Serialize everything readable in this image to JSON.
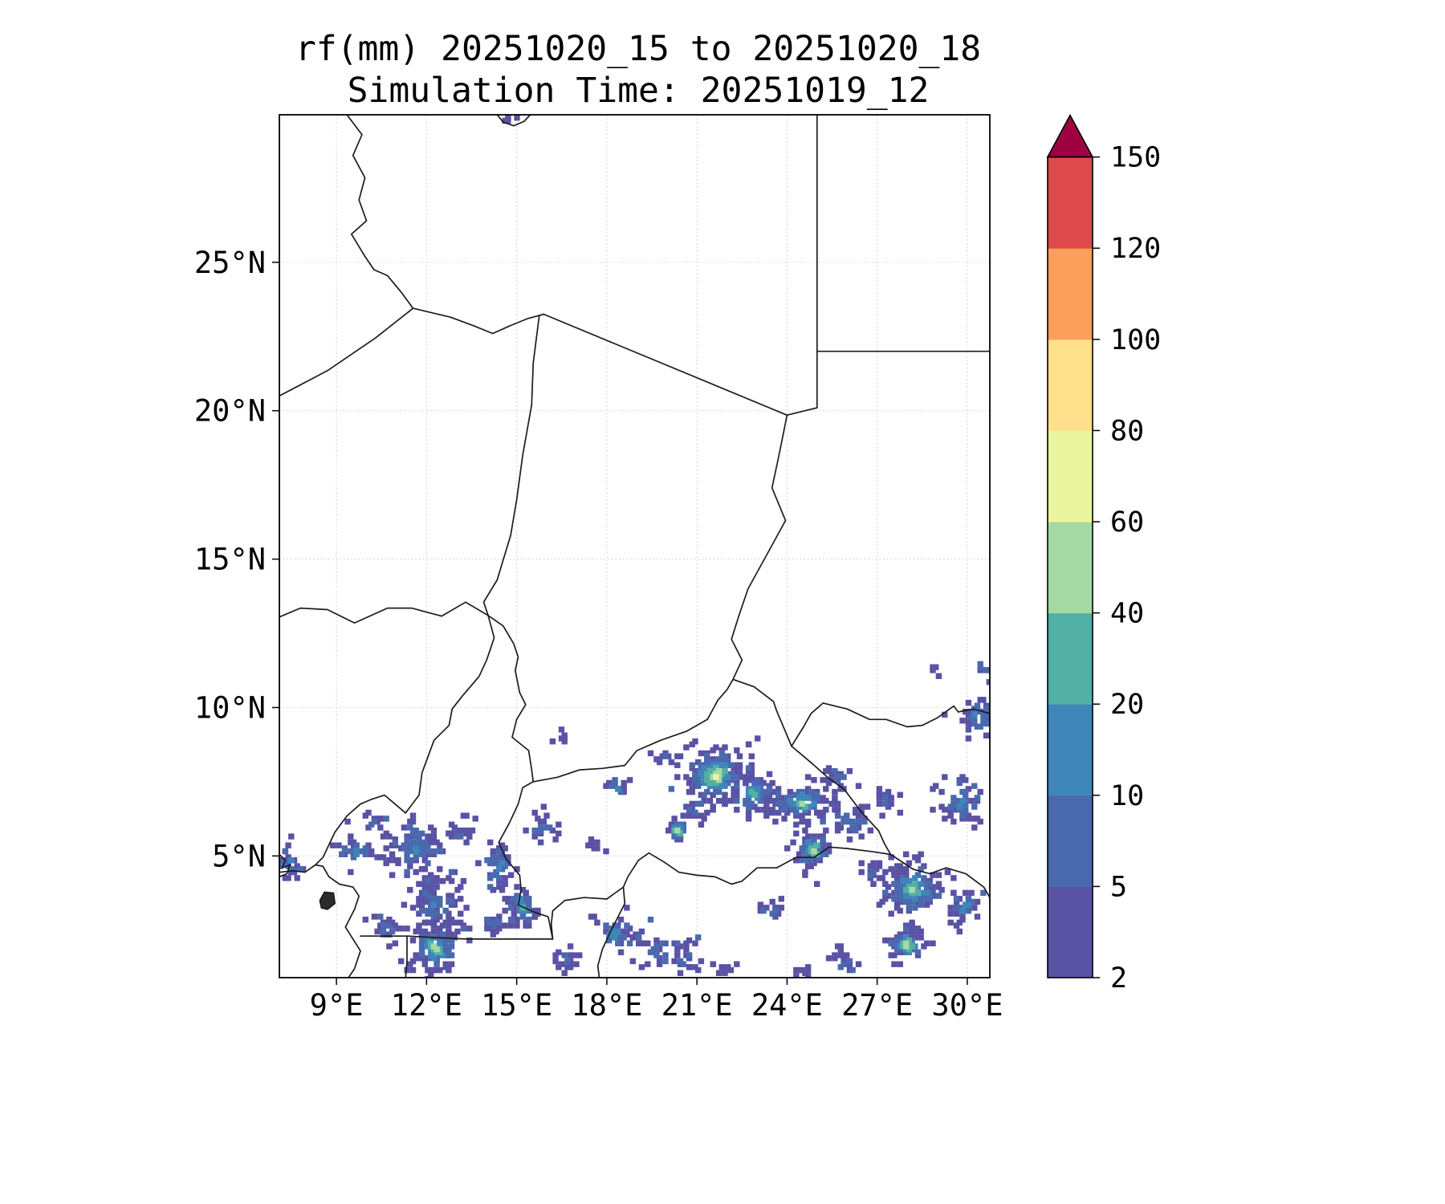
{
  "title": {
    "line1": "rf(mm) 20251020_15 to 20251020_18",
    "line2": "Simulation Time: 20251019_12"
  },
  "chart_data": {
    "type": "heatmap",
    "title": "rf(mm) 20251020_15 to 20251020_18",
    "subtitle": "Simulation Time: 20251019_12",
    "variable": "rf",
    "units": "mm",
    "grid": true,
    "x_axis": {
      "range": [
        7.1,
        30.75
      ],
      "ticks": [
        9,
        12,
        15,
        18,
        21,
        24,
        27,
        30
      ],
      "tick_labels": [
        "9°E",
        "12°E",
        "15°E",
        "18°E",
        "21°E",
        "24°E",
        "27°E",
        "30°E"
      ]
    },
    "y_axis": {
      "range": [
        0.9,
        29.97
      ],
      "ticks": [
        5,
        10,
        15,
        20,
        25
      ],
      "tick_labels": [
        "5°N",
        "10°N",
        "15°N",
        "20°N",
        "25°N"
      ]
    },
    "colorbar": {
      "levels": [
        2,
        5,
        10,
        20,
        40,
        60,
        80,
        100,
        120,
        150
      ],
      "tick_labels": [
        "2",
        "5",
        "10",
        "20",
        "40",
        "60",
        "80",
        "100",
        "120",
        "150"
      ],
      "colors": [
        "#5a52a5",
        "#4a69ae",
        "#3e86ba",
        "#52b0a4",
        "#a5d9a4",
        "#eaf69f",
        "#fedf8c",
        "#fba05c",
        "#dd4a4c"
      ],
      "over_color": "#9e0142",
      "extend": "max"
    },
    "rain_clusters": [
      {
        "lon": 11.6,
        "lat": 5.2,
        "rx": 0.85,
        "ry": 0.95,
        "n": 95,
        "peak": 2
      },
      {
        "lon": 12.35,
        "lat": 3.4,
        "rx": 0.7,
        "ry": 0.95,
        "n": 85,
        "peak": 2
      },
      {
        "lon": 12.3,
        "lat": 1.9,
        "rx": 0.8,
        "ry": 0.85,
        "n": 110,
        "peak": 4
      },
      {
        "lon": 10.6,
        "lat": 2.6,
        "rx": 0.5,
        "ry": 0.5,
        "n": 24,
        "peak": 1
      },
      {
        "lon": 9.6,
        "lat": 5.1,
        "rx": 0.7,
        "ry": 0.4,
        "n": 26,
        "peak": 2
      },
      {
        "lon": 7.5,
        "lat": 4.8,
        "rx": 0.45,
        "ry": 0.6,
        "n": 24,
        "peak": 2
      },
      {
        "lon": 10.2,
        "lat": 6.2,
        "rx": 0.4,
        "ry": 0.3,
        "n": 12,
        "peak": 1
      },
      {
        "lon": 13.1,
        "lat": 5.9,
        "rx": 0.4,
        "ry": 0.5,
        "n": 20,
        "peak": 1
      },
      {
        "lon": 14.4,
        "lat": 4.6,
        "rx": 0.5,
        "ry": 0.85,
        "n": 60,
        "peak": 2
      },
      {
        "lon": 15.2,
        "lat": 3.3,
        "rx": 0.5,
        "ry": 0.65,
        "n": 48,
        "peak": 3
      },
      {
        "lon": 14.2,
        "lat": 2.7,
        "rx": 0.4,
        "ry": 0.4,
        "n": 20,
        "peak": 1
      },
      {
        "lon": 15.9,
        "lat": 5.9,
        "rx": 0.45,
        "ry": 0.45,
        "n": 22,
        "peak": 2
      },
      {
        "lon": 16.6,
        "lat": 1.5,
        "rx": 0.4,
        "ry": 0.5,
        "n": 18,
        "peak": 1
      },
      {
        "lon": 18.3,
        "lat": 2.4,
        "rx": 0.7,
        "ry": 0.7,
        "n": 40,
        "peak": 2
      },
      {
        "lon": 19.6,
        "lat": 1.8,
        "rx": 0.5,
        "ry": 0.5,
        "n": 24,
        "peak": 1
      },
      {
        "lon": 18.3,
        "lat": 7.3,
        "rx": 0.35,
        "ry": 0.3,
        "n": 14,
        "peak": 2
      },
      {
        "lon": 17.6,
        "lat": 5.3,
        "rx": 0.3,
        "ry": 0.3,
        "n": 8,
        "peak": 0
      },
      {
        "lon": 20.6,
        "lat": 1.6,
        "rx": 0.5,
        "ry": 0.5,
        "n": 22,
        "peak": 1
      },
      {
        "lon": 16.5,
        "lat": 9.0,
        "rx": 0.25,
        "ry": 0.2,
        "n": 6,
        "peak": 0
      },
      {
        "lon": 21.6,
        "lat": 7.7,
        "rx": 1.05,
        "ry": 0.9,
        "n": 150,
        "peak": 5
      },
      {
        "lon": 22.9,
        "lat": 7.1,
        "rx": 0.8,
        "ry": 0.7,
        "n": 75,
        "peak": 3
      },
      {
        "lon": 20.35,
        "lat": 5.9,
        "rx": 0.35,
        "ry": 0.4,
        "n": 22,
        "peak": 4
      },
      {
        "lon": 21.0,
        "lat": 6.6,
        "rx": 0.4,
        "ry": 0.4,
        "n": 18,
        "peak": 1
      },
      {
        "lon": 19.9,
        "lat": 8.3,
        "rx": 0.3,
        "ry": 0.25,
        "n": 8,
        "peak": 1
      },
      {
        "lon": 24.5,
        "lat": 6.8,
        "rx": 0.95,
        "ry": 0.6,
        "n": 90,
        "peak": 4
      },
      {
        "lon": 24.85,
        "lat": 5.2,
        "rx": 0.55,
        "ry": 0.6,
        "n": 60,
        "peak": 4
      },
      {
        "lon": 26.1,
        "lat": 6.1,
        "rx": 0.7,
        "ry": 0.5,
        "n": 35,
        "peak": 2
      },
      {
        "lon": 25.7,
        "lat": 7.6,
        "rx": 0.45,
        "ry": 0.4,
        "n": 20,
        "peak": 1
      },
      {
        "lon": 25.9,
        "lat": 1.5,
        "rx": 0.5,
        "ry": 0.5,
        "n": 20,
        "peak": 1
      },
      {
        "lon": 23.5,
        "lat": 3.1,
        "rx": 0.45,
        "ry": 0.4,
        "n": 16,
        "peak": 1
      },
      {
        "lon": 28.2,
        "lat": 3.9,
        "rx": 1.0,
        "ry": 0.85,
        "n": 120,
        "peak": 4
      },
      {
        "lon": 28.0,
        "lat": 2.0,
        "rx": 0.6,
        "ry": 0.6,
        "n": 58,
        "peak": 4
      },
      {
        "lon": 29.8,
        "lat": 6.8,
        "rx": 0.7,
        "ry": 0.85,
        "n": 48,
        "peak": 2
      },
      {
        "lon": 30.4,
        "lat": 9.7,
        "rx": 0.5,
        "ry": 0.65,
        "n": 38,
        "peak": 2
      },
      {
        "lon": 30.55,
        "lat": 11.3,
        "rx": 0.3,
        "ry": 0.3,
        "n": 10,
        "peak": 1
      },
      {
        "lon": 28.9,
        "lat": 11.3,
        "rx": 0.15,
        "ry": 0.15,
        "n": 4,
        "peak": 0
      },
      {
        "lon": 27.3,
        "lat": 6.9,
        "rx": 0.4,
        "ry": 0.35,
        "n": 18,
        "peak": 1
      },
      {
        "lon": 26.8,
        "lat": 4.4,
        "rx": 0.4,
        "ry": 0.35,
        "n": 16,
        "peak": 1
      },
      {
        "lon": 29.9,
        "lat": 3.3,
        "rx": 0.55,
        "ry": 0.6,
        "n": 32,
        "peak": 2
      },
      {
        "lon": 21.9,
        "lat": 1.2,
        "rx": 0.4,
        "ry": 0.3,
        "n": 10,
        "peak": 0
      },
      {
        "lon": 24.5,
        "lat": 1.1,
        "rx": 0.3,
        "ry": 0.25,
        "n": 8,
        "peak": 0
      },
      {
        "lon": 14.8,
        "lat": 29.8,
        "rx": 0.22,
        "ry": 0.12,
        "n": 4,
        "peak": 1
      }
    ],
    "borders": [
      [
        [
          9.35,
          29.97
        ],
        [
          9.85,
          29.3
        ],
        [
          9.55,
          28.6
        ],
        [
          9.95,
          27.85
        ],
        [
          9.75,
          27.1
        ],
        [
          10.0,
          26.4
        ],
        [
          9.5,
          25.95
        ],
        [
          9.95,
          25.2
        ],
        [
          10.25,
          24.75
        ],
        [
          10.7,
          24.55
        ],
        [
          11.15,
          24.0
        ],
        [
          11.55,
          23.45
        ]
      ],
      [
        [
          7.1,
          20.5
        ],
        [
          8.7,
          21.35
        ],
        [
          10.3,
          22.45
        ],
        [
          11.55,
          23.45
        ]
      ],
      [
        [
          11.55,
          23.45
        ],
        [
          12.8,
          23.15
        ],
        [
          13.6,
          22.85
        ],
        [
          14.2,
          22.6
        ],
        [
          14.75,
          22.85
        ],
        [
          15.35,
          23.1
        ],
        [
          15.9,
          23.25
        ]
      ],
      [
        [
          15.9,
          23.25
        ],
        [
          24.0,
          19.85
        ]
      ],
      [
        [
          25.0,
          29.97
        ],
        [
          25.0,
          22.0
        ],
        [
          25.0,
          20.1
        ],
        [
          24.0,
          19.85
        ]
      ],
      [
        [
          25.0,
          22.0
        ],
        [
          30.75,
          22.0
        ]
      ],
      [
        [
          24.0,
          19.85
        ],
        [
          23.75,
          18.6
        ],
        [
          23.5,
          17.4
        ],
        [
          23.95,
          16.3
        ],
        [
          23.3,
          15.1
        ],
        [
          22.7,
          14.0
        ],
        [
          22.4,
          13.1
        ],
        [
          22.15,
          12.3
        ],
        [
          22.5,
          11.6
        ],
        [
          22.2,
          10.95
        ]
      ],
      [
        [
          15.75,
          23.2
        ],
        [
          15.55,
          21.6
        ],
        [
          15.5,
          20.2
        ],
        [
          15.2,
          18.5
        ],
        [
          15.0,
          17.0
        ],
        [
          14.8,
          15.8
        ],
        [
          14.35,
          14.3
        ],
        [
          13.9,
          13.55
        ],
        [
          14.05,
          13.1
        ]
      ],
      [
        [
          7.1,
          13.05
        ],
        [
          7.8,
          13.35
        ],
        [
          8.7,
          13.3
        ],
        [
          9.6,
          12.85
        ],
        [
          10.7,
          13.35
        ],
        [
          11.5,
          13.35
        ],
        [
          12.5,
          13.08
        ],
        [
          13.3,
          13.55
        ],
        [
          14.05,
          13.1
        ]
      ],
      [
        [
          14.05,
          13.1
        ],
        [
          14.25,
          12.35
        ],
        [
          14.0,
          11.6
        ],
        [
          13.75,
          11.05
        ],
        [
          13.2,
          10.4
        ],
        [
          12.85,
          9.95
        ],
        [
          12.75,
          9.4
        ],
        [
          12.25,
          8.9
        ],
        [
          11.85,
          7.8
        ],
        [
          11.75,
          7.05
        ],
        [
          11.3,
          6.45
        ],
        [
          10.6,
          7.05
        ],
        [
          10.15,
          6.9
        ],
        [
          9.8,
          6.75
        ],
        [
          9.35,
          6.35
        ],
        [
          8.95,
          5.8
        ],
        [
          8.55,
          4.95
        ],
        [
          8.3,
          4.7
        ]
      ],
      [
        [
          7.1,
          4.45
        ],
        [
          7.55,
          4.5
        ],
        [
          7.95,
          4.45
        ],
        [
          8.3,
          4.7
        ],
        [
          8.55,
          4.65
        ],
        [
          8.75,
          4.3
        ],
        [
          9.1,
          4.05
        ],
        [
          9.55,
          3.95
        ],
        [
          9.75,
          3.65
        ],
        [
          9.6,
          3.2
        ],
        [
          9.3,
          2.6
        ],
        [
          9.55,
          2.2
        ],
        [
          9.8,
          1.8
        ],
        [
          9.6,
          1.2
        ],
        [
          9.4,
          0.9
        ]
      ],
      [
        [
          8.45,
          3.5
        ],
        [
          8.6,
          3.78
        ],
        [
          8.9,
          3.75
        ],
        [
          8.95,
          3.4
        ],
        [
          8.7,
          3.2
        ],
        [
          8.5,
          3.25
        ],
        [
          8.45,
          3.5
        ]
      ],
      [
        [
          14.05,
          13.1
        ],
        [
          14.55,
          12.75
        ],
        [
          14.9,
          12.15
        ],
        [
          15.05,
          11.7
        ],
        [
          14.95,
          11.25
        ],
        [
          15.1,
          10.5
        ],
        [
          15.3,
          10.1
        ],
        [
          15.0,
          9.6
        ],
        [
          14.85,
          9.0
        ],
        [
          15.4,
          8.55
        ],
        [
          15.5,
          7.9
        ],
        [
          15.55,
          7.5
        ]
      ],
      [
        [
          15.55,
          7.5
        ],
        [
          16.35,
          7.65
        ],
        [
          17.1,
          7.9
        ],
        [
          17.85,
          7.95
        ],
        [
          18.6,
          8.05
        ],
        [
          19.0,
          8.55
        ],
        [
          19.8,
          8.9
        ],
        [
          20.65,
          9.2
        ],
        [
          21.35,
          9.6
        ],
        [
          21.7,
          10.25
        ],
        [
          22.0,
          10.6
        ],
        [
          22.2,
          10.95
        ]
      ],
      [
        [
          22.2,
          10.95
        ],
        [
          22.9,
          10.7
        ],
        [
          23.55,
          10.2
        ],
        [
          23.65,
          9.9
        ],
        [
          24.15,
          8.7
        ]
      ],
      [
        [
          24.15,
          8.7
        ],
        [
          24.55,
          9.35
        ],
        [
          24.8,
          9.8
        ],
        [
          25.2,
          10.15
        ],
        [
          26.0,
          9.95
        ],
        [
          26.75,
          9.6
        ],
        [
          27.3,
          9.6
        ],
        [
          28.0,
          9.35
        ],
        [
          28.5,
          9.4
        ],
        [
          29.0,
          9.65
        ],
        [
          29.55,
          10.05
        ],
        [
          29.7,
          9.85
        ],
        [
          30.2,
          9.95
        ],
        [
          30.75,
          9.8
        ]
      ],
      [
        [
          24.15,
          8.7
        ],
        [
          24.85,
          8.1
        ],
        [
          25.35,
          7.65
        ],
        [
          25.9,
          7.25
        ],
        [
          26.2,
          6.85
        ],
        [
          26.5,
          6.45
        ],
        [
          27.05,
          5.85
        ],
        [
          27.25,
          5.4
        ],
        [
          27.45,
          5.05
        ]
      ],
      [
        [
          27.45,
          5.05
        ],
        [
          26.8,
          5.15
        ],
        [
          26.0,
          5.25
        ],
        [
          25.4,
          5.3
        ],
        [
          24.9,
          4.95
        ],
        [
          24.3,
          4.95
        ],
        [
          23.65,
          4.6
        ],
        [
          23.0,
          4.6
        ],
        [
          22.5,
          4.15
        ],
        [
          22.15,
          4.05
        ],
        [
          21.6,
          4.3
        ],
        [
          21.0,
          4.35
        ],
        [
          20.4,
          4.45
        ],
        [
          19.9,
          4.8
        ],
        [
          19.4,
          5.1
        ],
        [
          19.05,
          4.85
        ],
        [
          18.7,
          4.3
        ],
        [
          18.55,
          3.95
        ]
      ],
      [
        [
          18.55,
          3.95
        ],
        [
          18.6,
          3.4
        ],
        [
          18.35,
          2.9
        ],
        [
          18.1,
          2.4
        ],
        [
          17.85,
          1.85
        ],
        [
          17.7,
          1.3
        ],
        [
          17.75,
          0.9
        ]
      ],
      [
        [
          18.55,
          3.95
        ],
        [
          18.0,
          3.55
        ],
        [
          17.25,
          3.6
        ],
        [
          16.6,
          3.5
        ],
        [
          16.2,
          3.15
        ],
        [
          16.15,
          2.7
        ],
        [
          16.2,
          2.2
        ]
      ],
      [
        [
          15.55,
          7.5
        ],
        [
          15.2,
          7.3
        ],
        [
          15.05,
          6.75
        ],
        [
          14.75,
          6.1
        ],
        [
          14.4,
          5.45
        ],
        [
          14.65,
          4.9
        ],
        [
          15.1,
          4.35
        ],
        [
          15.15,
          3.85
        ],
        [
          15.05,
          3.35
        ],
        [
          15.6,
          3.1
        ],
        [
          16.05,
          2.95
        ],
        [
          16.2,
          2.2
        ]
      ],
      [
        [
          9.8,
          2.3
        ],
        [
          10.5,
          2.3
        ],
        [
          11.35,
          2.3
        ],
        [
          12.3,
          2.25
        ],
        [
          13.3,
          2.2
        ],
        [
          14.3,
          2.2
        ],
        [
          15.2,
          2.2
        ],
        [
          16.2,
          2.2
        ]
      ],
      [
        [
          11.35,
          2.3
        ],
        [
          11.35,
          1.45
        ],
        [
          11.3,
          0.9
        ]
      ],
      [
        [
          27.45,
          5.05
        ],
        [
          28.2,
          4.55
        ],
        [
          28.75,
          4.4
        ],
        [
          29.3,
          4.6
        ],
        [
          29.95,
          4.4
        ],
        [
          30.55,
          3.95
        ],
        [
          30.75,
          3.6
        ]
      ],
      [
        [
          14.35,
          29.97
        ],
        [
          14.55,
          29.72
        ],
        [
          14.9,
          29.6
        ],
        [
          15.25,
          29.75
        ],
        [
          15.45,
          29.97
        ]
      ],
      [
        [
          7.1,
          5.05
        ],
        [
          7.3,
          4.85
        ],
        [
          7.2,
          4.6
        ],
        [
          7.45,
          4.7
        ],
        [
          7.35,
          4.4
        ],
        [
          7.1,
          4.3
        ]
      ]
    ]
  }
}
